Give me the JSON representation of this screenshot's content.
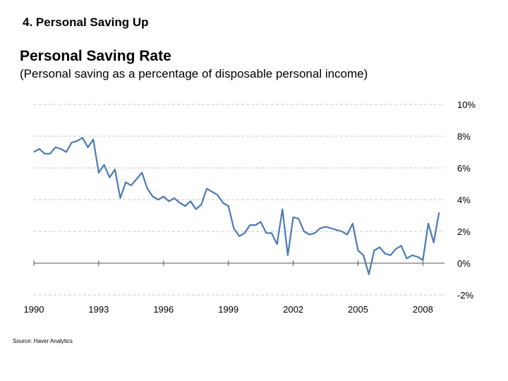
{
  "heading": "4. Personal Saving Up",
  "chart_data": {
    "type": "line",
    "title": "Personal Saving Rate",
    "subtitle": "(Personal saving as a percentage of disposable personal income)",
    "xlabel": "",
    "ylabel": "",
    "xlim": [
      1990,
      2009
    ],
    "ylim": [
      -2,
      10
    ],
    "y_ticks": [
      10,
      8,
      6,
      4,
      2,
      0,
      -2
    ],
    "y_tick_labels": [
      "10%",
      "8%",
      "6%",
      "4%",
      "2%",
      "0%",
      "-2%"
    ],
    "x_ticks": [
      1990,
      1993,
      1996,
      1999,
      2002,
      2005,
      2008
    ],
    "x_tick_labels": [
      "1990",
      "1993",
      "1996",
      "1999",
      "2002",
      "2005",
      "2008"
    ],
    "y_axis_side": "right",
    "grid": "horizontal dashed",
    "line_color": "#4a7ab5",
    "series": [
      {
        "x": [
          1990.0,
          1990.25,
          1990.5,
          1990.75,
          1991.0,
          1991.25,
          1991.5,
          1991.75,
          1992.0,
          1992.25,
          1992.5,
          1992.75,
          1993.0,
          1993.25,
          1993.5,
          1993.75,
          1994.0,
          1994.25,
          1994.5,
          1994.75,
          1995.0,
          1995.25,
          1995.5,
          1995.75,
          1996.0,
          1996.25,
          1996.5,
          1996.75,
          1997.0,
          1997.25,
          1997.5,
          1997.75,
          1998.0,
          1998.25,
          1998.5,
          1998.75,
          1999.0,
          1999.25,
          1999.5,
          1999.75,
          2000.0,
          2000.25,
          2000.5,
          2000.75,
          2001.0,
          2001.25,
          2001.5,
          2001.75,
          2002.0,
          2002.25,
          2002.5,
          2002.75,
          2003.0,
          2003.25,
          2003.5,
          2003.75,
          2004.0,
          2004.25,
          2004.5,
          2004.75,
          2005.0,
          2005.25,
          2005.5,
          2005.75,
          2006.0,
          2006.25,
          2006.5,
          2006.75,
          2007.0,
          2007.25,
          2007.5,
          2007.75,
          2008.0,
          2008.25,
          2008.5,
          2008.75
        ],
        "values": [
          7.0,
          7.2,
          6.9,
          6.9,
          7.3,
          7.2,
          7.0,
          7.6,
          7.7,
          7.9,
          7.3,
          7.8,
          5.7,
          6.2,
          5.4,
          5.9,
          4.1,
          5.1,
          4.9,
          5.3,
          5.7,
          4.7,
          4.2,
          4.0,
          4.2,
          3.9,
          4.1,
          3.8,
          3.6,
          3.9,
          3.4,
          3.7,
          4.7,
          4.5,
          4.3,
          3.8,
          3.6,
          2.2,
          1.7,
          1.9,
          2.4,
          2.4,
          2.6,
          1.9,
          1.9,
          1.2,
          3.4,
          0.5,
          2.9,
          2.8,
          2.0,
          1.8,
          1.9,
          2.2,
          2.3,
          2.2,
          2.1,
          2.0,
          1.8,
          2.5,
          0.8,
          0.5,
          -0.7,
          0.8,
          1.0,
          0.6,
          0.5,
          0.9,
          1.1,
          0.3,
          0.5,
          0.4,
          0.2,
          2.5,
          1.3,
          3.2
        ]
      }
    ]
  },
  "source": "Source: Haver Analytics"
}
